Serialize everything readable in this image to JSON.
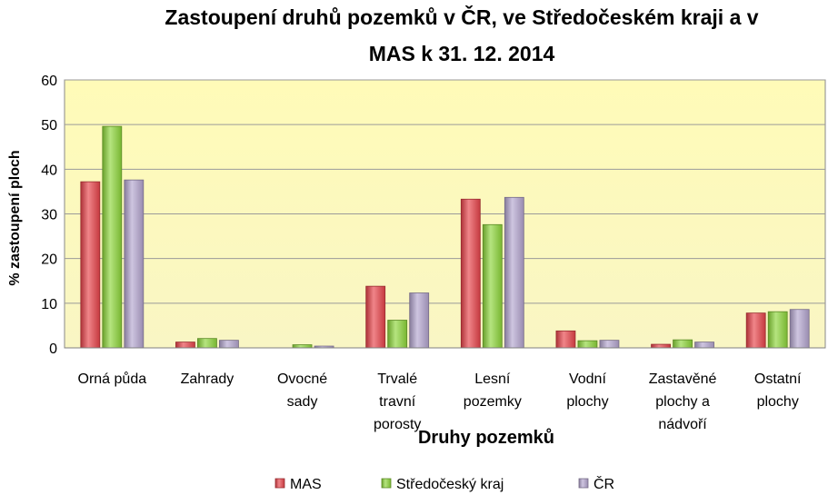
{
  "chart_data": {
    "type": "bar",
    "title_lines": [
      "Zastoupení druhů pozemků v ČR, ve Středočeském kraji a v",
      "MAS k 31. 12. 2014"
    ],
    "xlabel": "Druhy pozemků",
    "ylabel": "% zastoupení ploch",
    "ylim": [
      0,
      60
    ],
    "yticks": [
      0,
      10,
      20,
      30,
      40,
      50,
      60
    ],
    "grid": true,
    "legend_position": "bottom",
    "categories": [
      [
        "Orná půda"
      ],
      [
        "Zahrady"
      ],
      [
        "Ovocné",
        "sady"
      ],
      [
        "Trvalé",
        "travní",
        "porosty"
      ],
      [
        "Lesní",
        "pozemky"
      ],
      [
        "Vodní",
        "plochy"
      ],
      [
        "Zastavěné",
        "plochy a",
        "nádvoří"
      ],
      [
        "Ostatní",
        "plochy"
      ]
    ],
    "series": [
      {
        "name": "MAS",
        "color": "#e8434a",
        "values": [
          37.2,
          1.3,
          0.0,
          13.8,
          33.3,
          3.8,
          0.8,
          7.8
        ]
      },
      {
        "name": "Středočeský kraj",
        "color": "#8dd63a",
        "values": [
          49.6,
          2.1,
          0.7,
          6.2,
          27.6,
          1.6,
          1.8,
          8.1
        ]
      },
      {
        "name": "ČR",
        "color": "#b4a5cf",
        "values": [
          37.6,
          1.7,
          0.4,
          12.3,
          33.7,
          1.7,
          1.3,
          8.6
        ]
      }
    ]
  }
}
